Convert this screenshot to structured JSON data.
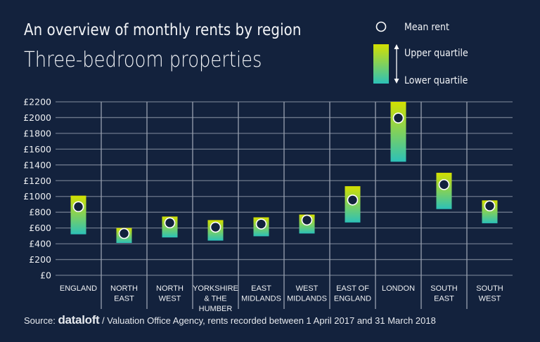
{
  "chart_data": {
    "type": "range-bar",
    "title": "An overview of monthly rents by region",
    "subtitle": "Three-bedroom properties",
    "xlabel": "",
    "ylabel": "",
    "ylim": [
      0,
      2200
    ],
    "yticks": [
      0,
      200,
      400,
      600,
      800,
      1000,
      1200,
      1400,
      1600,
      1800,
      2000,
      2200
    ],
    "ytick_labels": [
      "£0",
      "£200",
      "£400",
      "£600",
      "£800",
      "£1000",
      "£1200",
      "£1400",
      "£1600",
      "£1800",
      "£2000",
      "£2200"
    ],
    "grid": true,
    "categories": [
      [
        "ENGLAND"
      ],
      [
        "NORTH",
        "EAST"
      ],
      [
        "NORTH",
        "WEST"
      ],
      [
        "YORKSHIRE",
        "& THE",
        "HUMBER"
      ],
      [
        "EAST",
        "MIDLANDS"
      ],
      [
        "WEST",
        "MIDLANDS"
      ],
      [
        "EAST OF",
        "ENGLAND"
      ],
      [
        "LONDON"
      ],
      [
        "SOUTH",
        "EAST"
      ],
      [
        "SOUTH",
        "WEST"
      ]
    ],
    "series": [
      {
        "name": "Upper quartile",
        "values": [
          1010,
          600,
          745,
          700,
          735,
          770,
          1130,
          2200,
          1300,
          950
        ]
      },
      {
        "name": "Lower quartile",
        "values": [
          520,
          410,
          480,
          440,
          495,
          530,
          670,
          1440,
          840,
          660
        ]
      },
      {
        "name": "Mean rent",
        "values": [
          870,
          530,
          665,
          610,
          650,
          700,
          955,
          1995,
          1150,
          880
        ]
      }
    ],
    "legend": {
      "position": "top-right",
      "entries": [
        "Mean rent",
        "Upper quartile",
        "Lower quartile"
      ]
    },
    "colors": {
      "background": "#13223d",
      "gradient_top": "#d4e000",
      "gradient_bottom": "#2cc1b8",
      "grid": "#8891a3",
      "mean_marker_fill": "#13223d",
      "mean_marker_stroke": "#ffffff"
    }
  },
  "source": {
    "prefix": "Source:",
    "brand": "dataloft",
    "suffix": "/ Valuation Office Agency, rents recorded between 1 April 2017 and 31 March 2018"
  }
}
